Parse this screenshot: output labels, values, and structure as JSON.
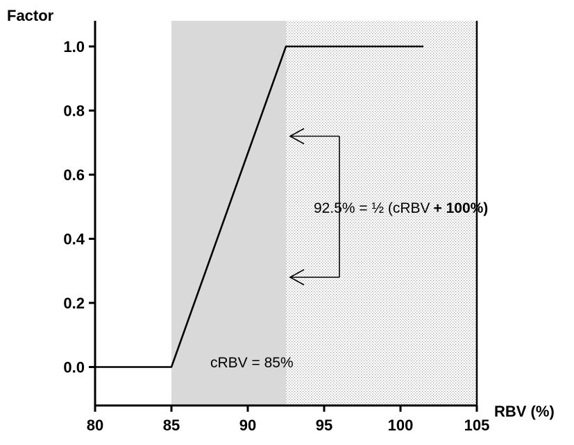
{
  "chart_data": {
    "type": "line",
    "ylabel": "Factor",
    "xlabel": "RBV (%)",
    "xlim": [
      80,
      105
    ],
    "ylim": [
      -0.12,
      1.08
    ],
    "x_ticks": [
      {
        "value": 80,
        "label": "80"
      },
      {
        "value": 85,
        "label": "85"
      },
      {
        "value": 90,
        "label": "90"
      },
      {
        "value": 95,
        "label": "95"
      },
      {
        "value": 100,
        "label": "100"
      },
      {
        "value": 105,
        "label": "105"
      }
    ],
    "y_ticks": [
      {
        "value": 0.0,
        "label": "0.0"
      },
      {
        "value": 0.2,
        "label": "0.2"
      },
      {
        "value": 0.4,
        "label": "0.4"
      },
      {
        "value": 0.6,
        "label": "0.6"
      },
      {
        "value": 0.8,
        "label": "0.8"
      },
      {
        "value": 1.0,
        "label": "1.0"
      }
    ],
    "series": [
      {
        "x": [
          80,
          85,
          92.5,
          101.5
        ],
        "y": [
          0.0,
          0.0,
          1.0,
          1.0
        ]
      }
    ],
    "regions": [
      {
        "x_start": 85,
        "x_end": 92.5,
        "fill": "solid-gray"
      },
      {
        "x_start": 92.5,
        "x_end": 105,
        "fill": "dotted"
      }
    ],
    "annotations": {
      "crbv_label": "cRBV = 85%",
      "formula_normal": "92.5% = ½ (cRBV",
      "formula_bold": "+ 100%)",
      "arrows": [
        {
          "from_x": 96,
          "to_x": 92.5,
          "y": 0.72
        },
        {
          "from_x": 96,
          "to_x": 92.5,
          "y": 0.28
        }
      ]
    },
    "grid": false,
    "colors": {
      "line": "#000000",
      "gray_region": "#d9d9d9",
      "dot_color": "#9a9a9a"
    }
  }
}
